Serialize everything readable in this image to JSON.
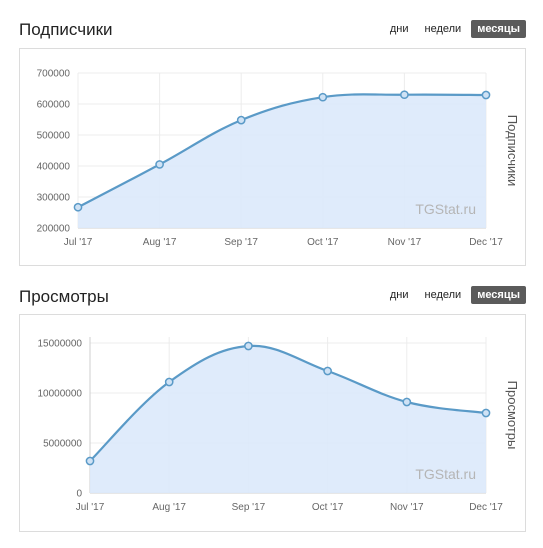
{
  "colors": {
    "line": "#5a9ac7",
    "fill": "#dbe9fb",
    "grid": "#ececec",
    "watermark": "#b5b5b5",
    "active_tab": "#5b5b5b"
  },
  "charts": [
    {
      "title": "Подписчики",
      "periods": [
        {
          "label": "дни",
          "active": false
        },
        {
          "label": "недели",
          "active": false
        },
        {
          "label": "месяцы",
          "active": true
        }
      ],
      "watermark": "TGStat.ru"
    },
    {
      "title": "Просмотры",
      "periods": [
        {
          "label": "дни",
          "active": false
        },
        {
          "label": "недели",
          "active": false
        },
        {
          "label": "месяцы",
          "active": true
        }
      ],
      "watermark": "TGStat.ru"
    }
  ],
  "chart_data": [
    {
      "type": "area",
      "title": "",
      "categories": [
        "Jul '17",
        "Aug '17",
        "Sep '17",
        "Oct '17",
        "Nov '17",
        "Dec '17"
      ],
      "series": [
        {
          "name": "",
          "values": [
            267000,
            405000,
            548000,
            622000,
            630000,
            629000
          ]
        }
      ],
      "xlabel": "",
      "ylabel": "Подписчики",
      "yticks": [
        200000,
        300000,
        400000,
        500000,
        600000,
        700000
      ],
      "ylim": [
        200000,
        700000
      ],
      "grid": true,
      "legend": "none"
    },
    {
      "type": "area",
      "title": "",
      "categories": [
        "Jul '17",
        "Aug '17",
        "Sep '17",
        "Oct '17",
        "Nov '17",
        "Dec '17"
      ],
      "series": [
        {
          "name": "",
          "values": [
            3200000,
            11100000,
            14700000,
            12200000,
            9100000,
            8000000
          ]
        }
      ],
      "xlabel": "",
      "ylabel": "Просмотры",
      "yticks": [
        0,
        5000000,
        10000000,
        15000000
      ],
      "ylim": [
        0,
        15600000
      ],
      "grid": true,
      "legend": "none"
    }
  ]
}
